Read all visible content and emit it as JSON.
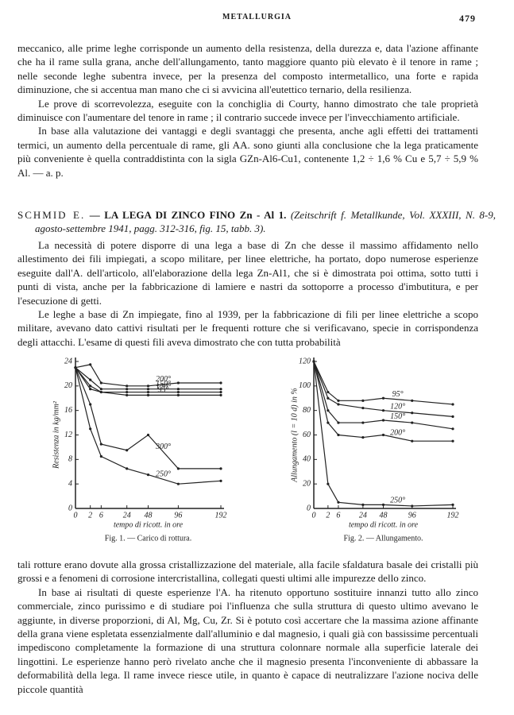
{
  "header": {
    "title": "METALLURGIA",
    "page": "479"
  },
  "paragraphs_top": [
    "meccanico, alle prime leghe corrisponde un aumento della resistenza, della durezza e, data l'azione affinante che ha il rame sulla grana, anche dell'allungamento, tanto maggiore quanto più elevato è il tenore in rame ; nelle seconde leghe subentra invece, per la presenza del composto intermetallico, una forte e rapida diminuzione, che si accentua man mano che ci si avvicina all'eutettico ternario, della resilienza.",
    "Le prove di scorrevolezza, eseguite con la conchiglia di Courty, hanno dimostrato che tale proprietà diminuisce con l'aumentare del tenore in rame ; il contrario succede invece per l'invecchiamento artificiale.",
    "In base alla valutazione dei vantaggi e degli svantaggi che presenta, anche agli effetti dei trattamenti termici, un aumento della percentuale di rame, gli AA. sono giunti alla conclusione che la lega praticamente più conveniente è quella contraddistinta con la sigla GZn-Al6-Cu1, contenente 1,2 ÷ 1,6 % Cu e 5,7 ÷ 5,9 % Al. — a. p."
  ],
  "reference": {
    "author": "SCHMID E.",
    "title": "— LA LEGA DI ZINCO FINO Zn - Al 1.",
    "source": "(Zeitschrift f. Metallkunde, Vol. XXXIII, N. 8-9, agosto-settembre 1941, pagg. 312-316, fig. 15, tabb. 3)."
  },
  "paragraphs_mid": [
    "La necessità di potere disporre di una lega a base di Zn che desse il massimo affidamento nello allestimento dei fili impiegati, a scopo militare, per linee elettriche, ha portato, dopo numerose esperienze eseguite dall'A. dell'articolo, all'elaborazione della lega Zn-Al1, che si è dimostrata poi ottima, sotto tutti i punti di vista, anche per la fabbricazione di lamiere e nastri da sottoporre a processo d'imbutitura, e per l'esecuzione di getti.",
    "Le leghe a base di Zn impiegate, fino al 1939, per la fabbricazione di fili per linee elettriche a scopo militare, avevano dato cattivi risultati per le frequenti rotture che si verificavano, specie in corrispondenza degli attacchi. L'esame di questi fili aveva dimostrato che con tutta probabilità"
  ],
  "paragraphs_bottom": [
    "tali rotture erano dovute alla grossa cristallizzazione del materiale, alla facile sfaldatura basale dei cristalli più grossi e a fenomeni di corrosione intercristallina, collegati questi ultimi alle impurezze dello zinco.",
    "In base ai risultati di queste esperienze l'A. ha ritenuto opportuno sostituire innanzi tutto allo zinco commerciale, zinco purissimo e di studiare poi l'influenza che sulla struttura di questo ultimo avevano le aggiunte, in diverse proporzioni, di Al, Mg, Cu, Zr. Si è potuto così accertare che la massima azione affinante della grana viene espletata essenzialmente dall'alluminio e dal magnesio, i quali già con bassissime percentuali impediscono completamente la formazione di una struttura colonnare normale alla superficie laterale dei lingottini. Le esperienze hanno però rivelato anche che il magnesio presenta l'inconveniente di abbassare la deformabilità della lega. Il rame invece riesce utile, in quanto è capace di neutralizzare l'azione nociva delle piccole quantità"
  ],
  "chart_data": [
    {
      "type": "line",
      "caption": "Fig. 1. — Carico di rottura.",
      "y_label": "Resistenza in kg/mm²",
      "x_label": "tempo di ricott. in ore",
      "x": [
        0,
        2,
        6,
        24,
        48,
        96,
        192
      ],
      "xlim": [
        0,
        192
      ],
      "xticks": [
        0,
        2,
        6,
        24,
        48,
        96,
        192
      ],
      "xscale": "sqrt",
      "ylim": [
        0,
        24
      ],
      "yticks": [
        0,
        4,
        8,
        12,
        16,
        20,
        24
      ],
      "grid": false,
      "series": [
        {
          "name": "200°",
          "color": "#222",
          "values": [
            23,
            23.5,
            20.5,
            20,
            20,
            20.5,
            20.5
          ]
        },
        {
          "name": "150°",
          "color": "#222",
          "values": [
            23,
            21,
            19.5,
            19.5,
            19.5,
            19.5,
            19.5
          ]
        },
        {
          "name": "120°",
          "color": "#222",
          "values": [
            23,
            20,
            19,
            19,
            19,
            19,
            19
          ]
        },
        {
          "name": "95°",
          "color": "#222",
          "values": [
            23,
            19.5,
            19,
            18.5,
            18.5,
            18.5,
            18.5
          ]
        },
        {
          "name": "300°",
          "color": "#222",
          "values": [
            23,
            17,
            10.5,
            9.5,
            12,
            6.5,
            6.5
          ]
        },
        {
          "name": "250°",
          "color": "#222",
          "values": [
            23,
            13,
            8.5,
            6.5,
            5.5,
            4,
            4.5
          ]
        }
      ]
    },
    {
      "type": "line",
      "caption": "Fig. 2. — Allungamento.",
      "y_label": "Allungamento (l = 10 d) in %",
      "x_label": "tempo di ricott. in ore",
      "x": [
        0,
        2,
        6,
        24,
        48,
        96,
        192
      ],
      "xlim": [
        0,
        192
      ],
      "xticks": [
        0,
        2,
        6,
        24,
        48,
        96,
        192
      ],
      "xscale": "sqrt",
      "ylim": [
        0,
        120
      ],
      "yticks": [
        0,
        20,
        40,
        60,
        80,
        100,
        120
      ],
      "grid": false,
      "series": [
        {
          "name": "95°",
          "color": "#222",
          "values": [
            120,
            95,
            88,
            88,
            90,
            88,
            85
          ]
        },
        {
          "name": "120°",
          "color": "#222",
          "values": [
            120,
            90,
            85,
            82,
            80,
            78,
            75
          ]
        },
        {
          "name": "150°",
          "color": "#222",
          "values": [
            120,
            80,
            70,
            70,
            72,
            70,
            65
          ]
        },
        {
          "name": "200°",
          "color": "#222",
          "values": [
            120,
            70,
            60,
            58,
            60,
            55,
            55
          ]
        },
        {
          "name": "250°",
          "color": "#222",
          "values": [
            120,
            20,
            5,
            3,
            3,
            2,
            3
          ]
        }
      ]
    }
  ]
}
